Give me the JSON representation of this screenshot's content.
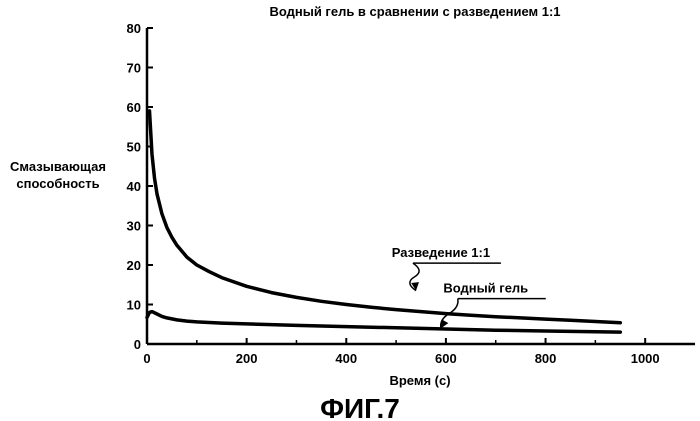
{
  "figure_label": "ФИГ.7",
  "colors": {
    "ink": "#000000",
    "background": "#ffffff"
  },
  "chart_data": {
    "type": "line",
    "title": "Водный гель в сравнении с разведением 1:1",
    "xlabel": "Время (с)",
    "ylabel_lines": [
      "Смазывающая",
      "способность"
    ],
    "xlim": [
      0,
      1100
    ],
    "ylim": [
      0,
      80
    ],
    "xticks": [
      0,
      200,
      400,
      600,
      800,
      1000
    ],
    "yticks": [
      0,
      10,
      20,
      30,
      40,
      50,
      60,
      70,
      80
    ],
    "grid": false,
    "series": [
      {
        "name": "Разведение 1:1",
        "x": [
          5,
          10,
          15,
          20,
          30,
          40,
          50,
          60,
          80,
          100,
          125,
          150,
          200,
          250,
          300,
          350,
          400,
          450,
          500,
          550,
          600,
          650,
          700,
          750,
          800,
          850,
          900,
          950
        ],
        "y": [
          59,
          48,
          42,
          38,
          33,
          29.5,
          27,
          25,
          22,
          20,
          18.3,
          16.8,
          14.6,
          13,
          11.8,
          10.8,
          10,
          9.3,
          8.7,
          8.2,
          7.7,
          7.3,
          6.9,
          6.6,
          6.3,
          6,
          5.7,
          5.4
        ]
      },
      {
        "name": "Водный гель",
        "x": [
          0,
          5,
          10,
          20,
          30,
          40,
          60,
          80,
          100,
          150,
          200,
          300,
          400,
          500,
          600,
          700,
          800,
          900,
          950
        ],
        "y": [
          6.7,
          8,
          8.2,
          7.6,
          7,
          6.6,
          6.1,
          5.8,
          5.6,
          5.3,
          5.1,
          4.7,
          4.4,
          4.1,
          3.8,
          3.5,
          3.3,
          3.1,
          3.0
        ]
      }
    ],
    "annotations": [
      {
        "text": "Разведение 1:1",
        "series": "Разведение 1:1",
        "points_to": [
          540,
          13.5
        ],
        "label_at": [
          590,
          22
        ]
      },
      {
        "text": "Водный гель",
        "series": "Водный гель",
        "points_to": [
          590,
          4
        ],
        "label_at": [
          680,
          13
        ]
      }
    ]
  }
}
